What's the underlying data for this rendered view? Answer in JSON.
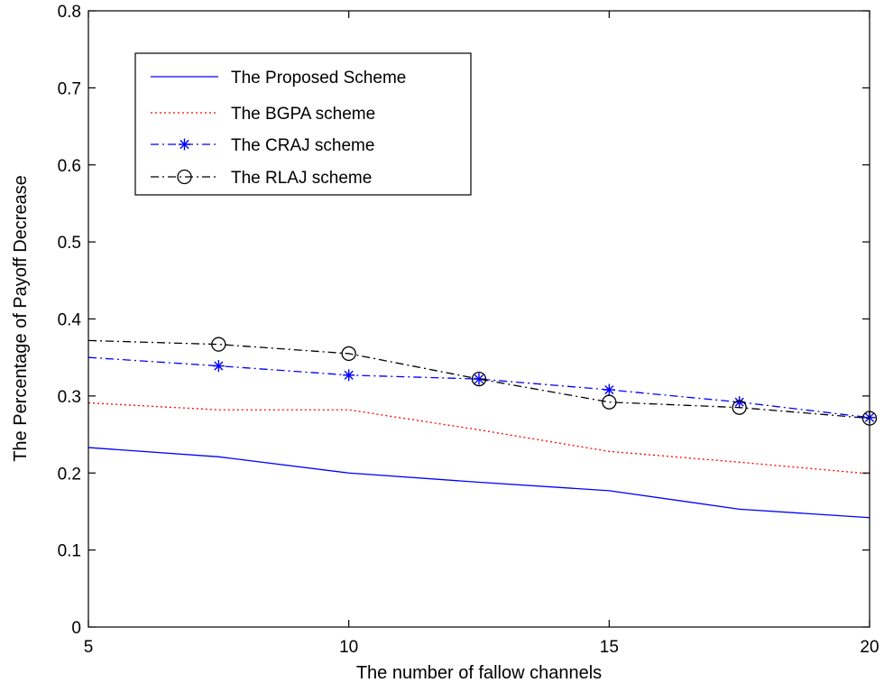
{
  "chart_data": {
    "type": "line",
    "xlabel": "The number of fallow channels",
    "ylabel": "The Percentage of Payoff Decrease",
    "xlim": [
      5,
      20
    ],
    "ylim": [
      0,
      0.8
    ],
    "x_ticks": [
      "5",
      "10",
      "15",
      "20"
    ],
    "y_ticks": [
      "0",
      "0.1",
      "0.2",
      "0.3",
      "0.4",
      "0.5",
      "0.6",
      "0.7",
      "0.8"
    ],
    "grid": false,
    "legend_position": "top-left",
    "series": [
      {
        "name": "The Proposed Scheme",
        "color": "#0000ff",
        "style": "solid",
        "marker": "none",
        "x": [
          5,
          7.5,
          10,
          12.5,
          15,
          17.5,
          20
        ],
        "values": [
          0.233,
          0.221,
          0.2,
          0.188,
          0.177,
          0.153,
          0.142
        ]
      },
      {
        "name": "The BGPA scheme",
        "color": "#ff0000",
        "style": "dotted",
        "marker": "none",
        "x": [
          5,
          7.5,
          10,
          12.5,
          15,
          17.5,
          20
        ],
        "values": [
          0.291,
          0.282,
          0.282,
          0.256,
          0.228,
          0.214,
          0.199
        ]
      },
      {
        "name": "The CRAJ scheme",
        "color": "#0000ff",
        "style": "dashdot",
        "marker": "star",
        "x": [
          5,
          7.5,
          10,
          12.5,
          15,
          17.5,
          20
        ],
        "values": [
          0.35,
          0.339,
          0.327,
          0.322,
          0.308,
          0.292,
          0.272
        ]
      },
      {
        "name": "The RLAJ scheme",
        "color": "#000000",
        "style": "dashdot",
        "marker": "circle",
        "x": [
          5,
          7.5,
          10,
          12.5,
          15,
          17.5,
          20
        ],
        "values": [
          0.372,
          0.367,
          0.355,
          0.322,
          0.292,
          0.285,
          0.271
        ]
      }
    ]
  }
}
